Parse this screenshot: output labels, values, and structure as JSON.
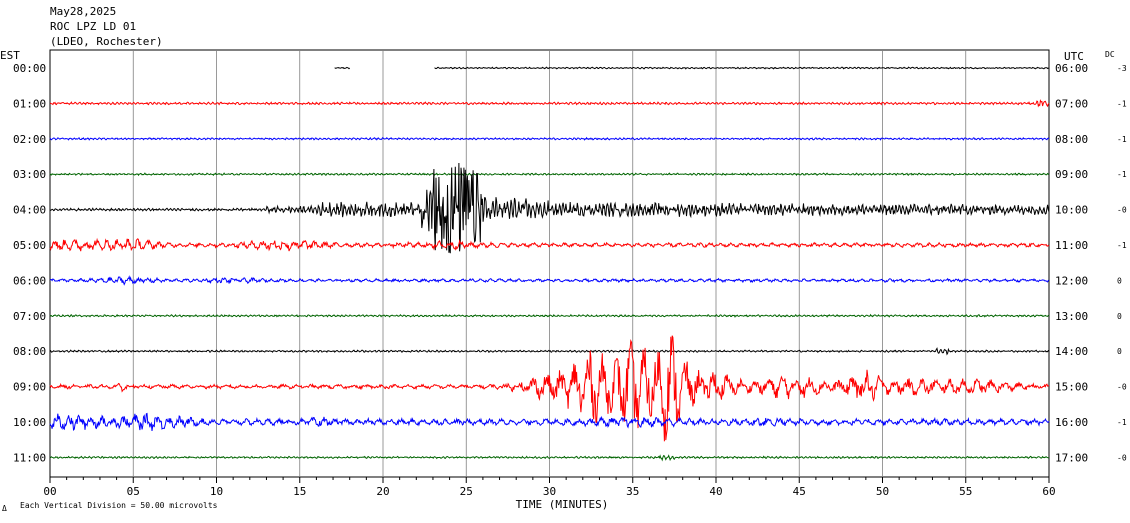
{
  "header": {
    "date": "May28,2025",
    "station": "ROC LPZ LD 01",
    "network": "(LDEO, Rochester)"
  },
  "axes": {
    "left_label": "EST",
    "right_label": "UTC",
    "dc_label": "DC",
    "xlabel": "TIME (MINUTES)",
    "x_ticks": [
      "00",
      "05",
      "10",
      "15",
      "20",
      "25",
      "30",
      "35",
      "40",
      "45",
      "50",
      "55",
      "60"
    ],
    "scale_note": "Each Vertical Division =   50.00 microvolts",
    "corner_mark": "Δ"
  },
  "chart_data": {
    "type": "line",
    "title": "",
    "xlabel": "TIME (MINUTES)",
    "ylabel": "",
    "xlim": [
      0,
      60
    ],
    "grid": true,
    "rows": [
      {
        "est": "00:00",
        "utc": "06:00",
        "dc": "-3",
        "color": "#000000"
      },
      {
        "est": "01:00",
        "utc": "07:00",
        "dc": "-1",
        "color": "#ff0000"
      },
      {
        "est": "02:00",
        "utc": "08:00",
        "dc": "-1",
        "color": "#0000ff"
      },
      {
        "est": "03:00",
        "utc": "09:00",
        "dc": "-1",
        "color": "#006400"
      },
      {
        "est": "04:00",
        "utc": "10:00",
        "dc": "-0",
        "color": "#000000"
      },
      {
        "est": "05:00",
        "utc": "11:00",
        "dc": "-1",
        "color": "#ff0000"
      },
      {
        "est": "06:00",
        "utc": "12:00",
        "dc": "0",
        "color": "#0000ff"
      },
      {
        "est": "07:00",
        "utc": "13:00",
        "dc": "0",
        "color": "#006400"
      },
      {
        "est": "08:00",
        "utc": "14:00",
        "dc": "0",
        "color": "#000000"
      },
      {
        "est": "09:00",
        "utc": "15:00",
        "dc": "-0",
        "color": "#ff0000"
      },
      {
        "est": "10:00",
        "utc": "16:00",
        "dc": "-1",
        "color": "#0000ff"
      },
      {
        "est": "11:00",
        "utc": "17:00",
        "dc": "-0",
        "color": "#006400"
      }
    ]
  }
}
